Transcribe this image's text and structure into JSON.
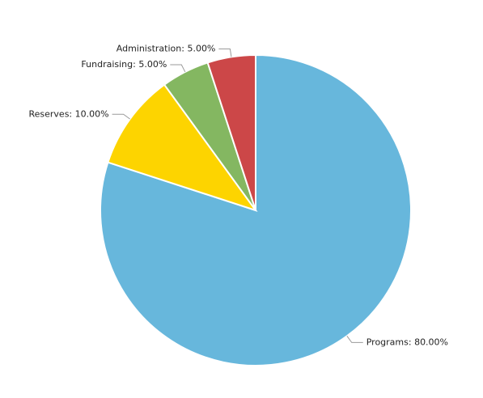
{
  "chart_data": {
    "type": "pie",
    "title": "",
    "start_angle_deg": 0,
    "direction": "clockwise",
    "label_format": "{category}: {value}%",
    "slices": [
      {
        "category": "Programs",
        "value": 80.0,
        "display": "80.00",
        "color": "#67b7dc"
      },
      {
        "category": "Reserves",
        "value": 10.0,
        "display": "10.00",
        "color": "#fdd400"
      },
      {
        "category": "Fundraising",
        "value": 5.0,
        "display": "5.00",
        "color": "#84b761"
      },
      {
        "category": "Administration",
        "value": 5.0,
        "display": "5.00",
        "color": "#cc4748"
      }
    ]
  }
}
